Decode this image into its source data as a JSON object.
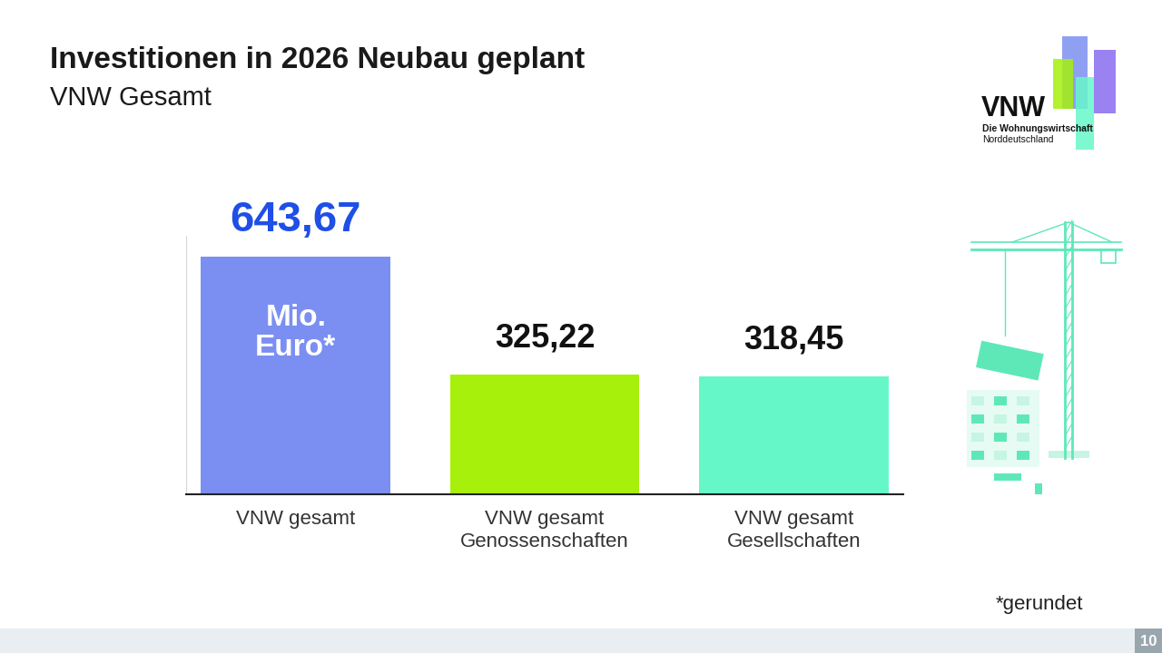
{
  "chart_data": {
    "type": "bar",
    "title": "Investitionen in 2026 Neubau geplant",
    "subtitle": "VNW Gesamt",
    "categories": [
      "VNW gesamt",
      "VNW gesamt\nGenossenschaften",
      "VNW gesamt\nGesellschaften"
    ],
    "values": [
      643.67,
      325.22,
      318.45
    ],
    "value_labels": [
      "643,67",
      "325,22",
      "318,45"
    ],
    "data_labels": true,
    "colors": [
      "#7b8ff2",
      "#a6f00c",
      "#66f7c9"
    ],
    "ylim": [
      0,
      700
    ],
    "yticks": [],
    "tick_labels": "x",
    "annotations": [
      "Mio.\nEuro*",
      "*gerundet"
    ],
    "logo": [
      "VNW",
      "Die Wohnungswirtschaft",
      "Norddeutschland"
    ],
    "page": "10"
  }
}
